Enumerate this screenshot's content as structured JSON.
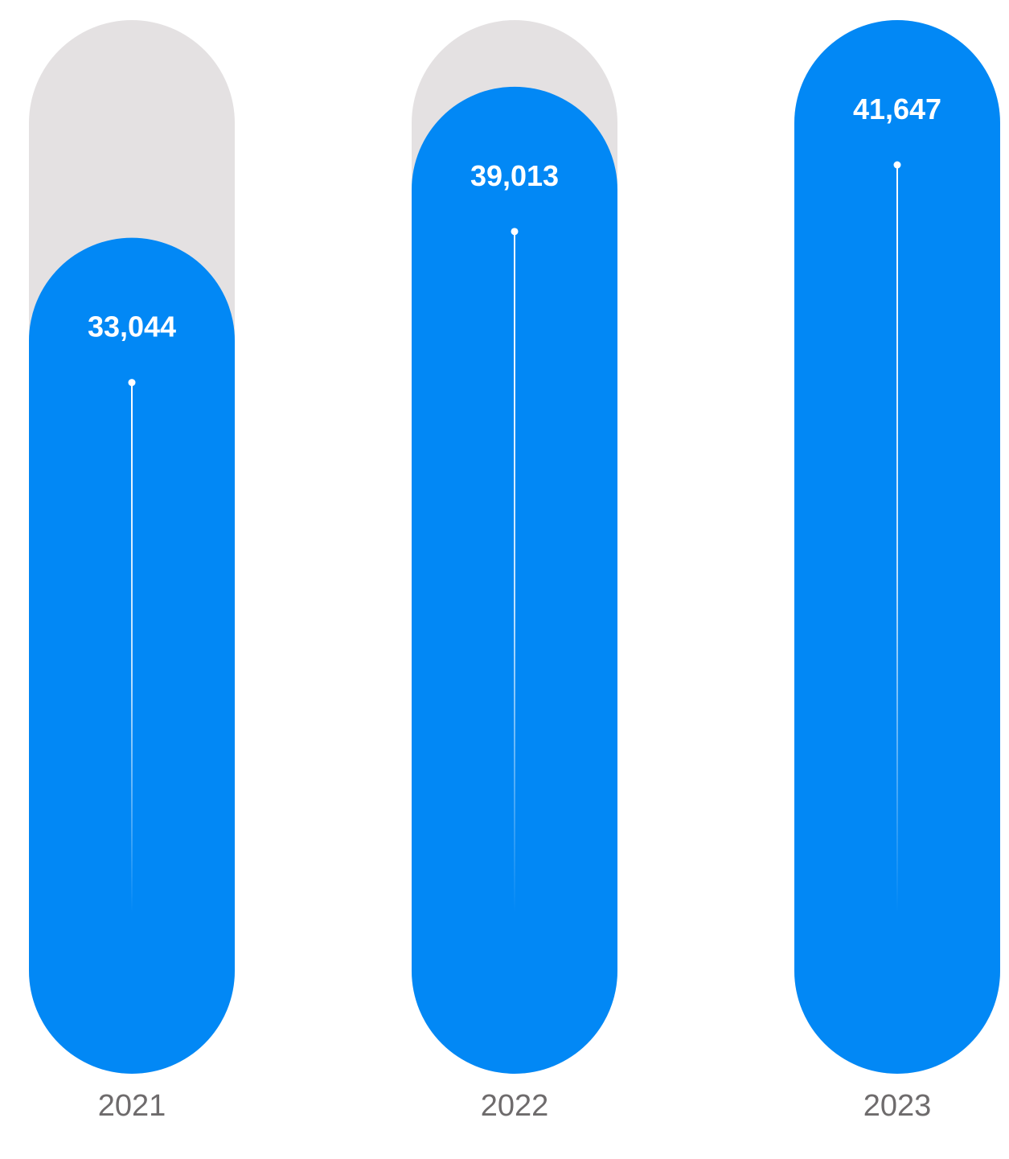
{
  "colors": {
    "bar": "#0288F5",
    "track": "#E4E1E2",
    "value_text": "#FFFFFF",
    "category_text": "#6E6B6C",
    "background": "#FFFFFF"
  },
  "chart_data": {
    "type": "bar",
    "title": "",
    "xlabel": "",
    "ylabel": "",
    "categories": [
      "2021",
      "2022",
      "2023"
    ],
    "values": [
      33044,
      39013,
      41647
    ],
    "value_labels": [
      "33,044",
      "39,013",
      "41,647"
    ],
    "ylim": [
      0,
      41647
    ],
    "grid": false,
    "legend": "none"
  }
}
